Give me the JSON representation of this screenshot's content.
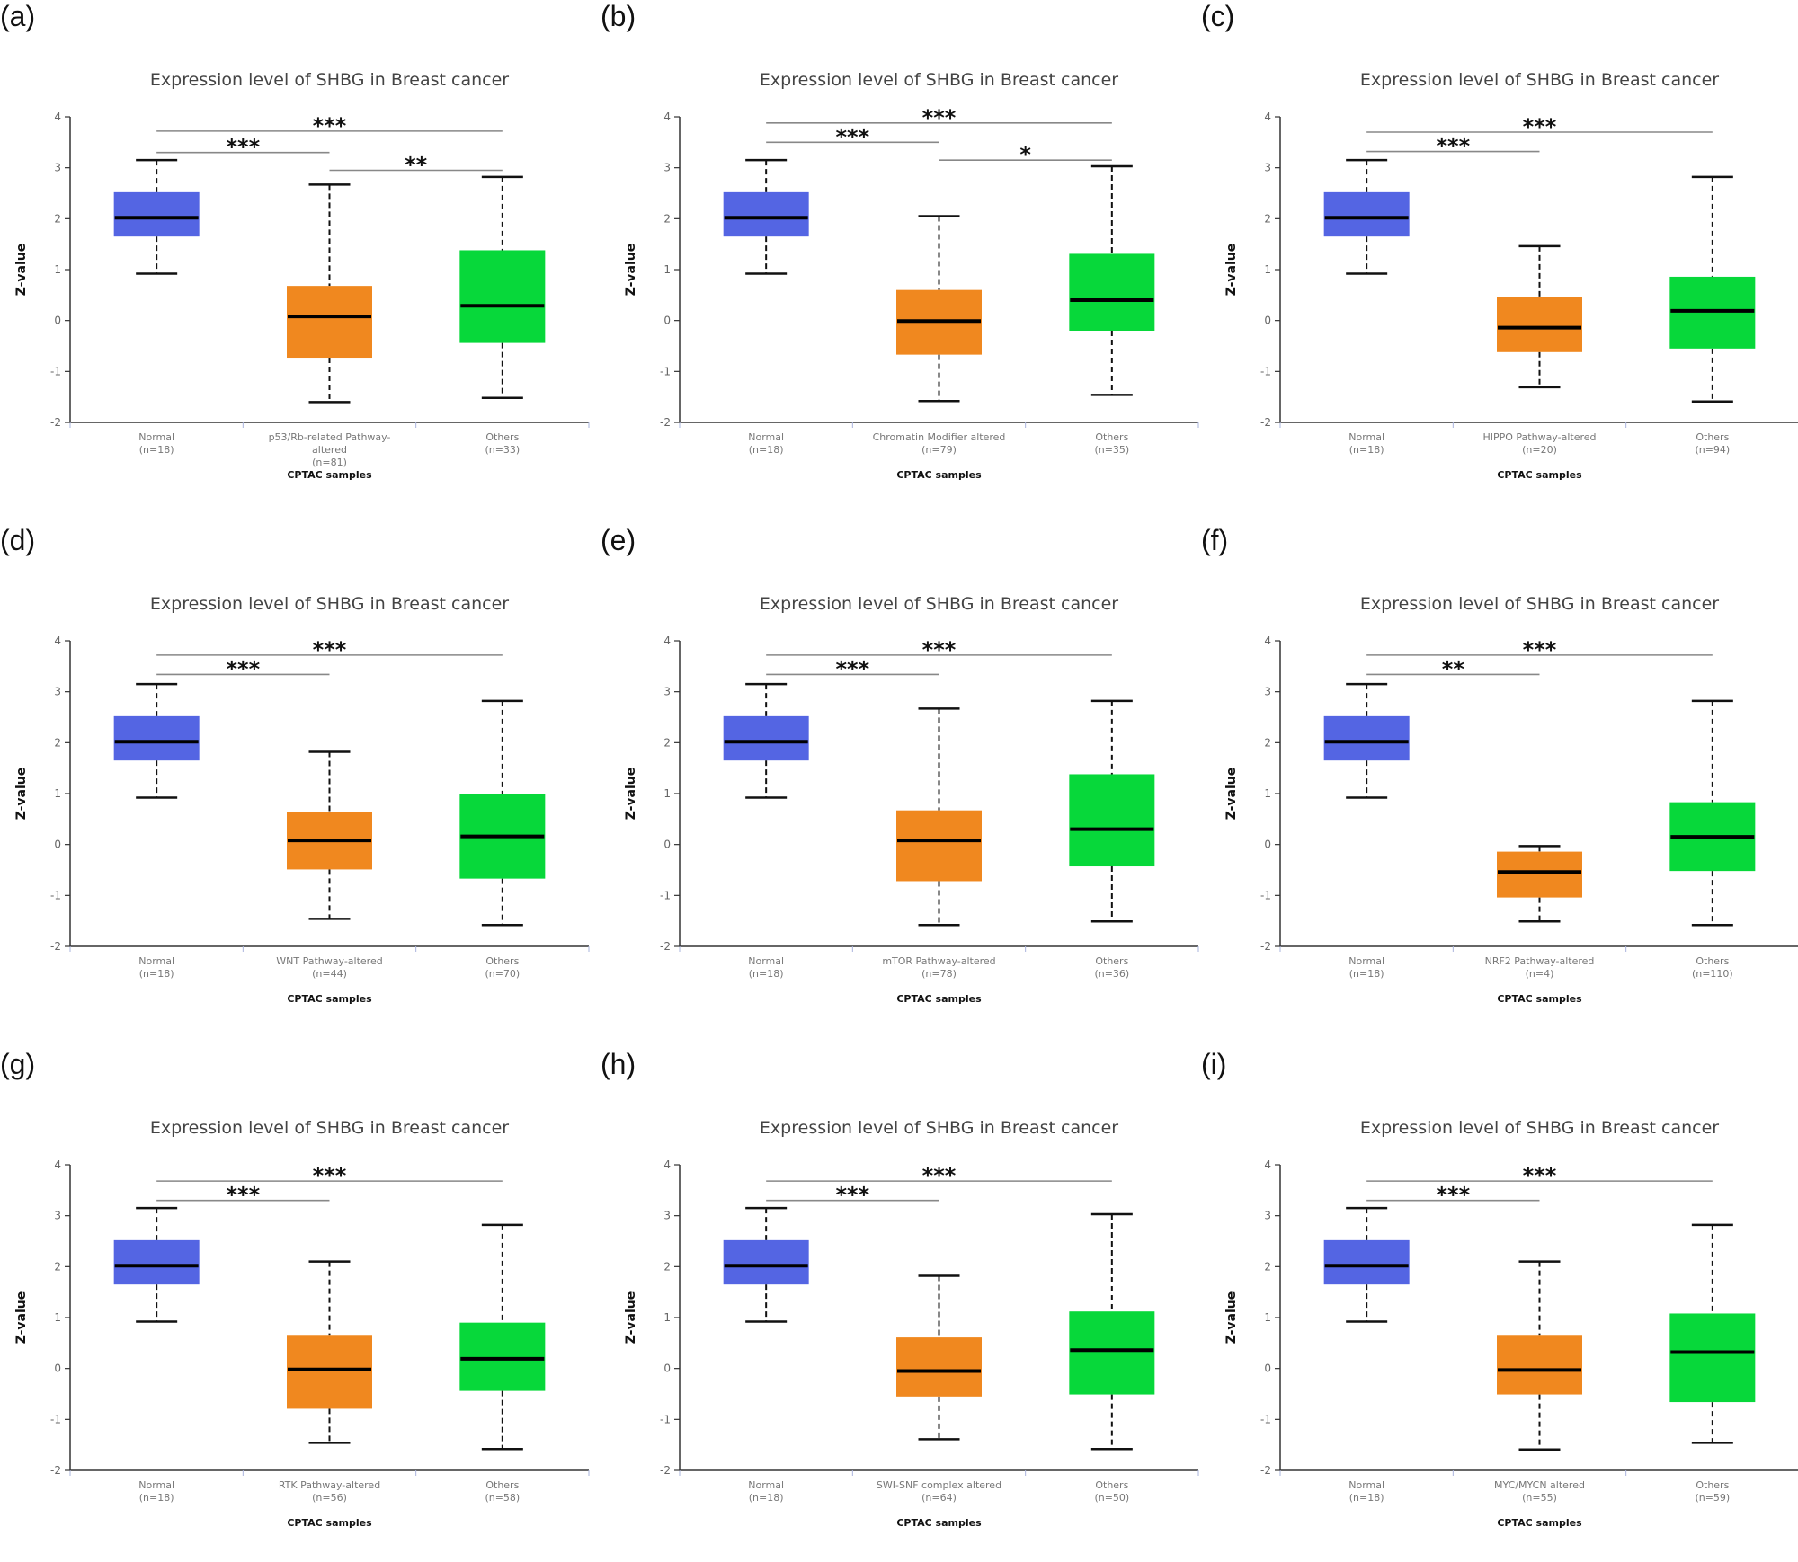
{
  "figure": {
    "colors": {
      "normal": "#5465e3",
      "altered": "#f0881f",
      "others": "#07d83a",
      "median": "#000000",
      "bracket": "#888888"
    }
  },
  "chart_data": [
    {
      "panel": "(a)",
      "type": "box",
      "title": "Expression level of SHBG in Breast cancer",
      "xlabel": "CPTAC samples",
      "ylabel": "Z-value",
      "ylim": [
        -2,
        4
      ],
      "yticks": [
        -2,
        -1,
        0,
        1,
        2,
        3,
        4
      ],
      "groups": [
        {
          "label": [
            "Normal",
            "(n=18)"
          ],
          "n": 18,
          "min": 0.92,
          "q1": 1.65,
          "median": 2.02,
          "q3": 2.52,
          "max": 3.15,
          "color": "normal"
        },
        {
          "label": [
            "p53/Rb-related Pathway-",
            "altered",
            "(n=81)"
          ],
          "n": 81,
          "min": -1.6,
          "q1": -0.73,
          "median": 0.08,
          "q3": 0.68,
          "max": 2.67,
          "color": "altered"
        },
        {
          "label": [
            "Others",
            "(n=33)"
          ],
          "n": 33,
          "min": -1.52,
          "q1": -0.44,
          "median": 0.29,
          "q3": 1.38,
          "max": 2.82,
          "color": "others"
        }
      ],
      "significance": [
        {
          "from": 0,
          "to": 2,
          "label": "***",
          "level": 3.72
        },
        {
          "from": 0,
          "to": 1,
          "label": "***",
          "level": 3.3
        },
        {
          "from": 1,
          "to": 2,
          "label": "**",
          "level": 2.95
        }
      ]
    },
    {
      "panel": "(b)",
      "type": "box",
      "title": "Expression level of SHBG in Breast cancer",
      "xlabel": "CPTAC samples",
      "ylabel": "Z-value",
      "ylim": [
        -2,
        4
      ],
      "yticks": [
        -2,
        -1,
        0,
        1,
        2,
        3,
        4
      ],
      "groups": [
        {
          "label": [
            "Normal",
            "(n=18)"
          ],
          "n": 18,
          "min": 0.92,
          "q1": 1.65,
          "median": 2.02,
          "q3": 2.52,
          "max": 3.15,
          "color": "normal"
        },
        {
          "label": [
            "Chromatin Modifier altered",
            "(n=79)"
          ],
          "n": 79,
          "min": -1.58,
          "q1": -0.67,
          "median": -0.01,
          "q3": 0.6,
          "max": 2.05,
          "color": "altered"
        },
        {
          "label": [
            "Others",
            "(n=35)"
          ],
          "n": 35,
          "min": -1.46,
          "q1": -0.2,
          "median": 0.4,
          "q3": 1.31,
          "max": 3.03,
          "color": "others"
        }
      ],
      "significance": [
        {
          "from": 0,
          "to": 2,
          "label": "***",
          "level": 3.88
        },
        {
          "from": 0,
          "to": 1,
          "label": "***",
          "level": 3.5
        },
        {
          "from": 1,
          "to": 2,
          "label": "*",
          "level": 3.15
        }
      ]
    },
    {
      "panel": "(c)",
      "type": "box",
      "title": "Expression level of SHBG in Breast cancer",
      "xlabel": "CPTAC samples",
      "ylabel": "Z-value",
      "ylim": [
        -2,
        4
      ],
      "yticks": [
        -2,
        -1,
        0,
        1,
        2,
        3,
        4
      ],
      "groups": [
        {
          "label": [
            "Normal",
            "(n=18)"
          ],
          "n": 18,
          "min": 0.92,
          "q1": 1.65,
          "median": 2.02,
          "q3": 2.52,
          "max": 3.15,
          "color": "normal"
        },
        {
          "label": [
            "HIPPO Pathway-altered",
            "(n=20)"
          ],
          "n": 20,
          "min": -1.31,
          "q1": -0.62,
          "median": -0.14,
          "q3": 0.46,
          "max": 1.46,
          "color": "altered"
        },
        {
          "label": [
            "Others",
            "(n=94)"
          ],
          "n": 94,
          "min": -1.59,
          "q1": -0.55,
          "median": 0.19,
          "q3": 0.86,
          "max": 2.82,
          "color": "others"
        }
      ],
      "significance": [
        {
          "from": 0,
          "to": 2,
          "label": "***",
          "level": 3.7
        },
        {
          "from": 0,
          "to": 1,
          "label": "***",
          "level": 3.32
        }
      ]
    },
    {
      "panel": "(d)",
      "type": "box",
      "title": "Expression level of SHBG in Breast cancer",
      "xlabel": "CPTAC samples",
      "ylabel": "Z-value",
      "ylim": [
        -2,
        4
      ],
      "yticks": [
        -2,
        -1,
        0,
        1,
        2,
        3,
        4
      ],
      "groups": [
        {
          "label": [
            "Normal",
            "(n=18)"
          ],
          "n": 18,
          "min": 0.92,
          "q1": 1.65,
          "median": 2.02,
          "q3": 2.52,
          "max": 3.15,
          "color": "normal"
        },
        {
          "label": [
            "WNT Pathway-altered",
            "(n=44)"
          ],
          "n": 44,
          "min": -1.46,
          "q1": -0.49,
          "median": 0.08,
          "q3": 0.63,
          "max": 1.82,
          "color": "altered"
        },
        {
          "label": [
            "Others",
            "(n=70)"
          ],
          "n": 70,
          "min": -1.58,
          "q1": -0.67,
          "median": 0.16,
          "q3": 1.0,
          "max": 2.82,
          "color": "others"
        }
      ],
      "significance": [
        {
          "from": 0,
          "to": 2,
          "label": "***",
          "level": 3.72
        },
        {
          "from": 0,
          "to": 1,
          "label": "***",
          "level": 3.34
        }
      ]
    },
    {
      "panel": "(e)",
      "type": "box",
      "title": "Expression level of SHBG in Breast cancer",
      "xlabel": "CPTAC samples",
      "ylabel": "Z-value",
      "ylim": [
        -2,
        4
      ],
      "yticks": [
        -2,
        -1,
        0,
        1,
        2,
        3,
        4
      ],
      "groups": [
        {
          "label": [
            "Normal",
            "(n=18)"
          ],
          "n": 18,
          "min": 0.92,
          "q1": 1.65,
          "median": 2.02,
          "q3": 2.52,
          "max": 3.15,
          "color": "normal"
        },
        {
          "label": [
            "mTOR Pathway-altered",
            "(n=78)"
          ],
          "n": 78,
          "min": -1.58,
          "q1": -0.72,
          "median": 0.08,
          "q3": 0.67,
          "max": 2.67,
          "color": "altered"
        },
        {
          "label": [
            "Others",
            "(n=36)"
          ],
          "n": 36,
          "min": -1.51,
          "q1": -0.43,
          "median": 0.3,
          "q3": 1.38,
          "max": 2.82,
          "color": "others"
        }
      ],
      "significance": [
        {
          "from": 0,
          "to": 2,
          "label": "***",
          "level": 3.72
        },
        {
          "from": 0,
          "to": 1,
          "label": "***",
          "level": 3.34
        }
      ]
    },
    {
      "panel": "(f)",
      "type": "box",
      "title": "Expression level of SHBG in Breast cancer",
      "xlabel": "CPTAC samples",
      "ylabel": "Z-value",
      "ylim": [
        -2,
        4
      ],
      "yticks": [
        -2,
        -1,
        0,
        1,
        2,
        3,
        4
      ],
      "groups": [
        {
          "label": [
            "Normal",
            "(n=18)"
          ],
          "n": 18,
          "min": 0.92,
          "q1": 1.65,
          "median": 2.02,
          "q3": 2.52,
          "max": 3.15,
          "color": "normal"
        },
        {
          "label": [
            "NRF2 Pathway-altered",
            "(n=4)"
          ],
          "n": 4,
          "min": -1.51,
          "q1": -1.04,
          "median": -0.54,
          "q3": -0.14,
          "max": -0.03,
          "color": "altered"
        },
        {
          "label": [
            "Others",
            "(n=110)"
          ],
          "n": 110,
          "min": -1.58,
          "q1": -0.52,
          "median": 0.15,
          "q3": 0.83,
          "max": 2.82,
          "color": "others"
        }
      ],
      "significance": [
        {
          "from": 0,
          "to": 2,
          "label": "***",
          "level": 3.72
        },
        {
          "from": 0,
          "to": 1,
          "label": "**",
          "level": 3.34
        }
      ]
    },
    {
      "panel": "(g)",
      "type": "box",
      "title": "Expression level of SHBG in Breast cancer",
      "xlabel": "CPTAC samples",
      "ylabel": "Z-value",
      "ylim": [
        -2,
        4
      ],
      "yticks": [
        -2,
        -1,
        0,
        1,
        2,
        3,
        4
      ],
      "groups": [
        {
          "label": [
            "Normal",
            "(n=18)"
          ],
          "n": 18,
          "min": 0.92,
          "q1": 1.65,
          "median": 2.02,
          "q3": 2.52,
          "max": 3.15,
          "color": "normal"
        },
        {
          "label": [
            "RTK Pathway-altered",
            "(n=56)"
          ],
          "n": 56,
          "min": -1.46,
          "q1": -0.79,
          "median": -0.02,
          "q3": 0.66,
          "max": 2.1,
          "color": "altered"
        },
        {
          "label": [
            "Others",
            "(n=58)"
          ],
          "n": 58,
          "min": -1.58,
          "q1": -0.44,
          "median": 0.19,
          "q3": 0.9,
          "max": 2.82,
          "color": "others"
        }
      ],
      "significance": [
        {
          "from": 0,
          "to": 2,
          "label": "***",
          "level": 3.68
        },
        {
          "from": 0,
          "to": 1,
          "label": "***",
          "level": 3.3
        }
      ]
    },
    {
      "panel": "(h)",
      "type": "box",
      "title": "Expression level of SHBG in Breast cancer",
      "xlabel": "CPTAC samples",
      "ylabel": "Z-value",
      "ylim": [
        -2,
        4
      ],
      "yticks": [
        -2,
        -1,
        0,
        1,
        2,
        3,
        4
      ],
      "groups": [
        {
          "label": [
            "Normal",
            "(n=18)"
          ],
          "n": 18,
          "min": 0.92,
          "q1": 1.65,
          "median": 2.02,
          "q3": 2.52,
          "max": 3.15,
          "color": "normal"
        },
        {
          "label": [
            "SWI-SNF complex altered",
            "(n=64)"
          ],
          "n": 64,
          "min": -1.39,
          "q1": -0.55,
          "median": -0.05,
          "q3": 0.61,
          "max": 1.82,
          "color": "altered"
        },
        {
          "label": [
            "Others",
            "(n=50)"
          ],
          "n": 50,
          "min": -1.58,
          "q1": -0.51,
          "median": 0.36,
          "q3": 1.12,
          "max": 3.03,
          "color": "others"
        }
      ],
      "significance": [
        {
          "from": 0,
          "to": 2,
          "label": "***",
          "level": 3.68
        },
        {
          "from": 0,
          "to": 1,
          "label": "***",
          "level": 3.3
        }
      ]
    },
    {
      "panel": "(i)",
      "type": "box",
      "title": "Expression level of SHBG in Breast cancer",
      "xlabel": "CPTAC samples",
      "ylabel": "Z-value",
      "ylim": [
        -2,
        4
      ],
      "yticks": [
        -2,
        -1,
        0,
        1,
        2,
        3,
        4
      ],
      "groups": [
        {
          "label": [
            "Normal",
            "(n=18)"
          ],
          "n": 18,
          "min": 0.92,
          "q1": 1.65,
          "median": 2.02,
          "q3": 2.52,
          "max": 3.15,
          "color": "normal"
        },
        {
          "label": [
            "MYC/MYCN altered",
            "(n=55)"
          ],
          "n": 55,
          "min": -1.59,
          "q1": -0.51,
          "median": -0.03,
          "q3": 0.66,
          "max": 2.1,
          "color": "altered"
        },
        {
          "label": [
            "Others",
            "(n=59)"
          ],
          "n": 59,
          "min": -1.46,
          "q1": -0.66,
          "median": 0.32,
          "q3": 1.08,
          "max": 2.82,
          "color": "others"
        }
      ],
      "significance": [
        {
          "from": 0,
          "to": 2,
          "label": "***",
          "level": 3.68
        },
        {
          "from": 0,
          "to": 1,
          "label": "***",
          "level": 3.3
        }
      ]
    }
  ]
}
